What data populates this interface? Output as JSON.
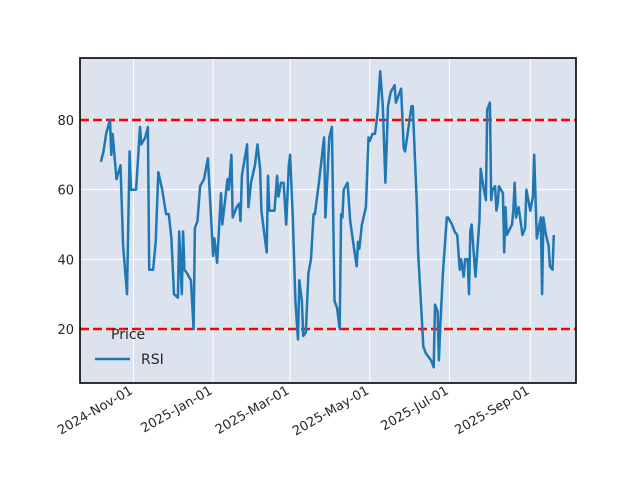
{
  "chart_data": {
    "type": "line",
    "title": "",
    "xlabel": "",
    "ylabel": "",
    "xlim": [
      "2024-09-21",
      "2025-10-06"
    ],
    "ylim": [
      4.5,
      97.8
    ],
    "grid": true,
    "background_color": "#dce3ee",
    "x_ticks": [
      {
        "date": "2024-11-01",
        "label": "2024-Nov-01"
      },
      {
        "date": "2025-01-01",
        "label": "2025-Jan-01"
      },
      {
        "date": "2025-03-01",
        "label": "2025-Mar-01"
      },
      {
        "date": "2025-05-01",
        "label": "2025-May-01"
      },
      {
        "date": "2025-07-01",
        "label": "2025-Jul-01"
      },
      {
        "date": "2025-09-01",
        "label": "2025-Sep-01"
      }
    ],
    "y_ticks": [
      20,
      40,
      60,
      80
    ],
    "legend": {
      "title": "Price",
      "placement": "lower-left"
    },
    "reference_lines": [
      {
        "y": 80,
        "color": "#ff0000",
        "style": "dashed"
      },
      {
        "y": 20,
        "color": "#ff0000",
        "style": "dashed"
      }
    ],
    "series": [
      {
        "name": "RSI",
        "color": "#1f77b4",
        "points": [
          [
            "2024-10-07",
            68
          ],
          [
            "2024-10-09",
            71
          ],
          [
            "2024-10-11",
            76
          ],
          [
            "2024-10-14",
            80
          ],
          [
            "2024-10-15",
            70
          ],
          [
            "2024-10-16",
            76
          ],
          [
            "2024-10-19",
            63
          ],
          [
            "2024-10-22",
            67
          ],
          [
            "2024-10-24",
            44
          ],
          [
            "2024-10-27",
            30
          ],
          [
            "2024-10-29",
            71
          ],
          [
            "2024-10-30",
            60
          ],
          [
            "2024-11-03",
            60
          ],
          [
            "2024-11-06",
            78
          ],
          [
            "2024-11-07",
            73
          ],
          [
            "2024-11-10",
            75
          ],
          [
            "2024-11-12",
            78
          ],
          [
            "2024-11-13",
            37
          ],
          [
            "2024-11-16",
            37
          ],
          [
            "2024-11-18",
            45
          ],
          [
            "2024-11-20",
            65
          ],
          [
            "2024-11-23",
            60
          ],
          [
            "2024-11-26",
            53
          ],
          [
            "2024-11-28",
            53
          ],
          [
            "2024-11-30",
            46
          ],
          [
            "2024-12-02",
            30
          ],
          [
            "2024-12-05",
            29
          ],
          [
            "2024-12-06",
            48
          ],
          [
            "2024-12-08",
            30
          ],
          [
            "2024-12-09",
            48
          ],
          [
            "2024-12-10",
            37
          ],
          [
            "2024-12-12",
            36
          ],
          [
            "2024-12-15",
            34
          ],
          [
            "2024-12-17",
            20
          ],
          [
            "2024-12-18",
            49
          ],
          [
            "2024-12-20",
            51
          ],
          [
            "2024-12-22",
            61
          ],
          [
            "2024-12-25",
            63
          ],
          [
            "2024-12-28",
            69
          ],
          [
            "2025-01-01",
            41
          ],
          [
            "2025-01-02",
            46
          ],
          [
            "2025-01-04",
            39
          ],
          [
            "2025-01-07",
            59
          ],
          [
            "2025-01-08",
            50
          ],
          [
            "2025-01-12",
            63
          ],
          [
            "2025-01-13",
            60
          ],
          [
            "2025-01-15",
            70
          ],
          [
            "2025-01-16",
            52
          ],
          [
            "2025-01-19",
            55
          ],
          [
            "2025-01-21",
            56
          ],
          [
            "2025-01-22",
            51
          ],
          [
            "2025-01-23",
            64
          ],
          [
            "2025-01-27",
            73
          ],
          [
            "2025-01-28",
            55
          ],
          [
            "2025-01-30",
            62
          ],
          [
            "2025-02-02",
            67
          ],
          [
            "2025-02-04",
            73
          ],
          [
            "2025-02-06",
            66
          ],
          [
            "2025-02-07",
            54
          ],
          [
            "2025-02-09",
            48
          ],
          [
            "2025-02-11",
            42
          ],
          [
            "2025-02-12",
            64
          ],
          [
            "2025-02-13",
            54
          ],
          [
            "2025-02-17",
            54
          ],
          [
            "2025-02-19",
            64
          ],
          [
            "2025-02-20",
            58
          ],
          [
            "2025-02-22",
            62
          ],
          [
            "2025-02-24",
            62
          ],
          [
            "2025-02-26",
            50
          ],
          [
            "2025-02-28",
            67
          ],
          [
            "2025-03-01",
            70
          ],
          [
            "2025-03-03",
            52
          ],
          [
            "2025-03-05",
            28
          ],
          [
            "2025-03-07",
            17
          ],
          [
            "2025-03-08",
            34
          ],
          [
            "2025-03-10",
            28
          ],
          [
            "2025-03-11",
            18
          ],
          [
            "2025-03-13",
            19
          ],
          [
            "2025-03-15",
            36
          ],
          [
            "2025-03-17",
            40
          ],
          [
            "2025-03-19",
            53
          ],
          [
            "2025-03-20",
            53
          ],
          [
            "2025-03-23",
            62
          ],
          [
            "2025-03-27",
            75
          ],
          [
            "2025-03-28",
            52
          ],
          [
            "2025-03-31",
            75
          ],
          [
            "2025-04-02",
            78
          ],
          [
            "2025-04-04",
            28
          ],
          [
            "2025-04-06",
            26
          ],
          [
            "2025-04-08",
            20
          ],
          [
            "2025-04-09",
            53
          ],
          [
            "2025-04-10",
            52
          ],
          [
            "2025-04-11",
            60
          ],
          [
            "2025-04-14",
            62
          ],
          [
            "2025-04-16",
            51
          ],
          [
            "2025-04-19",
            43
          ],
          [
            "2025-04-21",
            38
          ],
          [
            "2025-04-22",
            45
          ],
          [
            "2025-04-23",
            43
          ],
          [
            "2025-04-25",
            50
          ],
          [
            "2025-04-28",
            55
          ],
          [
            "2025-04-30",
            75
          ],
          [
            "2025-05-01",
            74
          ],
          [
            "2025-05-03",
            76
          ],
          [
            "2025-05-05",
            76
          ],
          [
            "2025-05-07",
            82
          ],
          [
            "2025-05-09",
            94
          ],
          [
            "2025-05-11",
            84
          ],
          [
            "2025-05-13",
            62
          ],
          [
            "2025-05-15",
            84
          ],
          [
            "2025-05-17",
            88
          ],
          [
            "2025-05-20",
            90
          ],
          [
            "2025-05-21",
            85
          ],
          [
            "2025-05-24",
            88
          ],
          [
            "2025-05-25",
            89
          ],
          [
            "2025-05-27",
            72
          ],
          [
            "2025-05-28",
            71
          ],
          [
            "2025-05-30",
            76
          ],
          [
            "2025-06-02",
            84
          ],
          [
            "2025-06-03",
            84
          ],
          [
            "2025-06-06",
            56
          ],
          [
            "2025-06-07",
            42
          ],
          [
            "2025-06-10",
            22
          ],
          [
            "2025-06-11",
            15
          ],
          [
            "2025-06-13",
            13
          ],
          [
            "2025-06-17",
            11
          ],
          [
            "2025-06-19",
            9
          ],
          [
            "2025-06-20",
            27
          ],
          [
            "2025-06-22",
            25
          ],
          [
            "2025-06-23",
            11
          ],
          [
            "2025-06-24",
            21
          ],
          [
            "2025-06-26",
            36
          ],
          [
            "2025-06-29",
            52
          ],
          [
            "2025-06-30",
            52
          ],
          [
            "2025-07-03",
            50
          ],
          [
            "2025-07-05",
            48
          ],
          [
            "2025-07-07",
            47
          ],
          [
            "2025-07-09",
            37
          ],
          [
            "2025-07-10",
            40
          ],
          [
            "2025-07-12",
            35
          ],
          [
            "2025-07-13",
            40
          ],
          [
            "2025-07-15",
            40
          ],
          [
            "2025-07-16",
            30
          ],
          [
            "2025-07-17",
            48
          ],
          [
            "2025-07-18",
            50
          ],
          [
            "2025-07-21",
            35
          ],
          [
            "2025-07-24",
            51
          ],
          [
            "2025-07-25",
            66
          ],
          [
            "2025-07-27",
            61
          ],
          [
            "2025-07-29",
            57
          ],
          [
            "2025-07-30",
            83
          ],
          [
            "2025-08-01",
            85
          ],
          [
            "2025-08-02",
            57
          ],
          [
            "2025-08-03",
            60
          ],
          [
            "2025-08-05",
            61
          ],
          [
            "2025-08-06",
            54
          ],
          [
            "2025-08-07",
            56
          ],
          [
            "2025-08-08",
            61
          ],
          [
            "2025-08-11",
            59
          ],
          [
            "2025-08-12",
            42
          ],
          [
            "2025-08-13",
            55
          ],
          [
            "2025-08-14",
            47
          ],
          [
            "2025-08-18",
            50
          ],
          [
            "2025-08-19",
            54
          ],
          [
            "2025-08-20",
            62
          ],
          [
            "2025-08-21",
            52
          ],
          [
            "2025-08-23",
            55
          ],
          [
            "2025-08-26",
            47
          ],
          [
            "2025-08-28",
            49
          ],
          [
            "2025-08-29",
            60
          ],
          [
            "2025-09-01",
            54
          ],
          [
            "2025-09-03",
            58
          ],
          [
            "2025-09-04",
            70
          ],
          [
            "2025-09-06",
            46
          ],
          [
            "2025-09-09",
            52
          ],
          [
            "2025-09-10",
            30
          ],
          [
            "2025-09-11",
            52
          ],
          [
            "2025-09-13",
            47
          ],
          [
            "2025-09-15",
            44
          ],
          [
            "2025-09-16",
            38
          ],
          [
            "2025-09-18",
            37
          ],
          [
            "2025-09-19",
            47
          ]
        ]
      }
    ]
  }
}
